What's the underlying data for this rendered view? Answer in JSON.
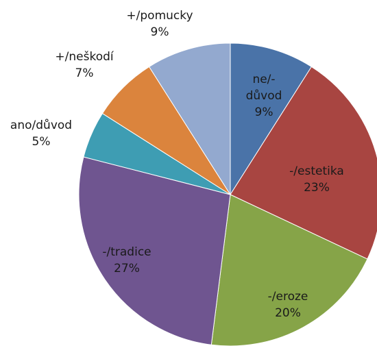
{
  "chart_data": {
    "type": "pie",
    "categories": [
      "ne/-důvod",
      "-/estetika",
      "-/eroze",
      "-/tradice",
      "ano/důvod",
      "+/neškodí",
      "+/pomucky"
    ],
    "values": [
      9,
      23,
      20,
      27,
      5,
      7,
      9
    ],
    "value_labels": [
      "9%",
      "23%",
      "20%",
      "27%",
      "5%",
      "7%",
      "9%"
    ],
    "colors": [
      "#4a73a8",
      "#a84541",
      "#86a448",
      "#6f5590",
      "#3e9db3",
      "#db843d",
      "#93a9cf"
    ]
  }
}
